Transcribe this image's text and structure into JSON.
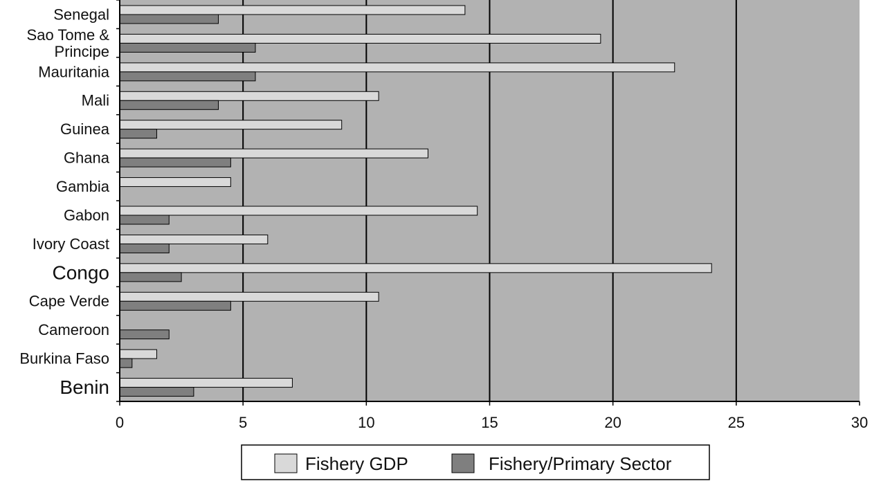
{
  "chart_data": {
    "type": "bar",
    "orientation": "horizontal",
    "title": "",
    "xlabel": "",
    "ylabel": "",
    "categories": [
      "Senegal",
      "Sao Tome & Principe",
      "Mauritania",
      "Mali",
      "Guinea",
      "Ghana",
      "Gambia",
      "Gabon",
      "Ivory Coast",
      "Congo",
      "Cape Verde",
      "Cameroon",
      "Burkina Faso",
      "Benin"
    ],
    "category_lines": [
      [
        "Senegal"
      ],
      [
        "Sao Tome &",
        "Principe"
      ],
      [
        "Mauritania"
      ],
      [
        "Mali"
      ],
      [
        "Guinea"
      ],
      [
        "Ghana"
      ],
      [
        "Gambia"
      ],
      [
        "Gabon"
      ],
      [
        "Ivory Coast"
      ],
      [
        "Congo"
      ],
      [
        "Cape Verde"
      ],
      [
        "Cameroon"
      ],
      [
        "Burkina Faso"
      ],
      [
        "Benin"
      ]
    ],
    "series": [
      {
        "name": "Fishery GDP",
        "color": "#d9d9d9",
        "values": [
          14,
          19.5,
          22.5,
          10.5,
          9,
          12.5,
          4.5,
          14.5,
          6,
          24,
          10.5,
          0,
          1.5,
          7
        ]
      },
      {
        "name": "Fishery/Primary Sector",
        "color": "#7f7f7f",
        "values": [
          4,
          5.5,
          5.5,
          4,
          1.5,
          4.5,
          0,
          2,
          2,
          2.5,
          4.5,
          2,
          0.5,
          3
        ]
      }
    ],
    "xlim": [
      0,
      30
    ],
    "xticks": [
      0,
      5,
      10,
      15,
      20,
      25,
      30
    ],
    "grid": "vertical",
    "plot_background": "#b2b2b2",
    "legend_position": "bottom"
  }
}
